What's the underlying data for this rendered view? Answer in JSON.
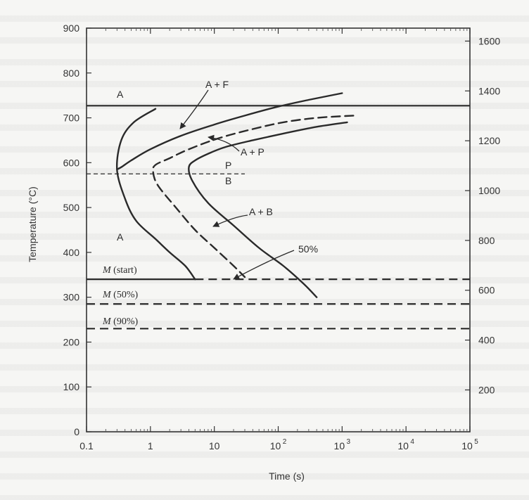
{
  "chart_data": {
    "type": "line",
    "title": "",
    "xlabel": "Time (s)",
    "ylabel": "Temperature (°C)",
    "xscale": "log",
    "xlim": [
      0.1,
      100000
    ],
    "ylim": [
      0,
      900
    ],
    "x_tick_labels": [
      "0.1",
      "1",
      "10",
      "10",
      "10",
      "10",
      "10"
    ],
    "x_tick_exponents": [
      "",
      "",
      "",
      "2",
      "3",
      "4",
      "5"
    ],
    "x_ticks": [
      0.1,
      1,
      10,
      100,
      1000,
      10000,
      100000
    ],
    "y_ticks": [
      0,
      100,
      200,
      300,
      400,
      500,
      600,
      700,
      800,
      900
    ],
    "y_tick_labels": [
      "0",
      "100",
      "200",
      "300",
      "400",
      "500",
      "600",
      "700",
      "800",
      "900"
    ],
    "secondary_y_ticks": [
      200,
      400,
      600,
      800,
      1000,
      1200,
      1400,
      1600
    ],
    "secondary_y_tick_labels": [
      "200",
      "400",
      "600",
      "800",
      "1000",
      "1200",
      "1400",
      "1600"
    ],
    "reference_lines": [
      {
        "y": 727,
        "x_range": [
          0.1,
          100000
        ],
        "style": "solid"
      },
      {
        "y": 575,
        "x_range": [
          0.1,
          30
        ],
        "style": "dashed"
      },
      {
        "y": 340,
        "x_range": [
          0.1,
          5
        ],
        "style": "solid"
      },
      {
        "y": 340,
        "x_range": [
          5,
          100000
        ],
        "style": "dashed"
      },
      {
        "y": 285,
        "x_range": [
          0.1,
          100000
        ],
        "style": "dashed"
      },
      {
        "y": 230,
        "x_range": [
          0.1,
          100000
        ],
        "style": "dashed"
      }
    ],
    "series": [
      {
        "style": "solid",
        "x": [
          1.2,
          0.55,
          0.35,
          0.3,
          0.4,
          0.6,
          1.2,
          2.0,
          3.5,
          5.0
        ],
        "y": [
          720,
          690,
          650,
          585,
          520,
          470,
          430,
          400,
          370,
          340
        ]
      },
      {
        "style": "solid",
        "x": [
          1000,
          300,
          100,
          30,
          10,
          3,
          1,
          0.5,
          0.35,
          0.3
        ],
        "y": [
          755,
          740,
          725,
          705,
          685,
          660,
          630,
          605,
          590,
          585
        ]
      },
      {
        "style": "dashed",
        "x": [
          1500,
          400,
          120,
          40,
          12,
          4,
          2,
          1.2,
          1.1,
          1.3,
          2.5,
          5,
          10,
          20,
          30
        ],
        "y": [
          705,
          700,
          690,
          675,
          655,
          630,
          610,
          595,
          580,
          550,
          500,
          450,
          410,
          370,
          345
        ]
      },
      {
        "style": "solid",
        "x": [
          1200,
          400,
          120,
          40,
          15,
          8,
          5,
          4,
          4.5,
          8,
          20,
          50,
          120,
          250,
          400
        ],
        "y": [
          690,
          680,
          665,
          650,
          635,
          620,
          605,
          590,
          560,
          510,
          460,
          410,
          370,
          330,
          300
        ]
      }
    ],
    "annotations": [
      {
        "text": "A",
        "x": 0.6,
        "y": 770
      },
      {
        "text": "A + F",
        "x": 10,
        "y": 760
      },
      {
        "text": "A + P",
        "x": 100,
        "y": 620
      },
      {
        "text": "P",
        "x": 20,
        "y": 590
      },
      {
        "text": "B",
        "x": 20,
        "y": 555
      },
      {
        "text": "A + B",
        "x": 100,
        "y": 480
      },
      {
        "text": "A",
        "x": 0.6,
        "y": 390
      },
      {
        "text": "50%",
        "x": 1000,
        "y": 390
      },
      {
        "text": "(start)",
        "prefix": "M",
        "x": 0.2,
        "y": 360
      },
      {
        "text": "(50%)",
        "prefix": "M",
        "x": 0.2,
        "y": 305
      },
      {
        "text": "(90%)",
        "prefix": "M",
        "x": 0.2,
        "y": 250
      }
    ]
  }
}
